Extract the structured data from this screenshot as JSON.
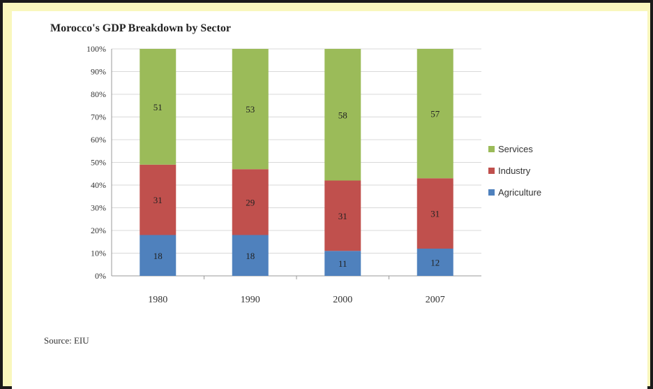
{
  "chart_data": {
    "type": "bar",
    "stacked": true,
    "title": "Morocco's GDP Breakdown by Sector",
    "categories": [
      "1980",
      "1990",
      "2000",
      "2007"
    ],
    "series": [
      {
        "name": "Agriculture",
        "values": [
          18,
          18,
          11,
          12
        ],
        "color": "#4f81bd"
      },
      {
        "name": "Industry",
        "values": [
          31,
          29,
          31,
          31
        ],
        "color": "#c0504d"
      },
      {
        "name": "Services",
        "values": [
          51,
          53,
          58,
          57
        ],
        "color": "#9bbb59"
      }
    ],
    "legend_order": [
      "Services",
      "Industry",
      "Agriculture"
    ],
    "y_ticks": [
      "100%",
      "90%",
      "80%",
      "70%",
      "60%",
      "50%",
      "40%",
      "30%",
      "20%",
      "10%",
      "0%"
    ],
    "ylim": [
      0,
      100
    ],
    "grid": true,
    "legend_position": "right"
  },
  "source": "Source: EIU"
}
